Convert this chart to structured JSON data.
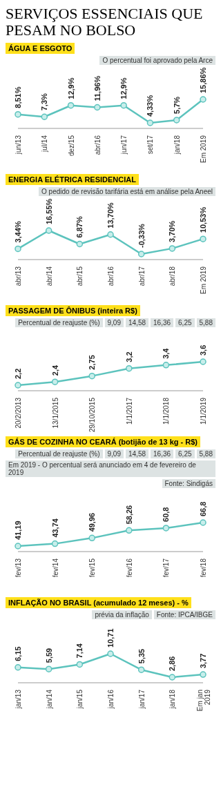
{
  "chart_data": [
    {
      "type": "line",
      "title": "SERVIÇOS ESSENCIAIS QUE PESAM NO BOLSO",
      "subtitle": "ÁGUA E ESGOTO",
      "annotations": [
        "O percentual foi aprovado pela Arce"
      ],
      "categories": [
        "jun/13",
        "jul/14",
        "dez/15",
        "abr/16",
        "jun/17",
        "set/17",
        "jan/18",
        "Em 2019"
      ],
      "values": [
        8.51,
        7.3,
        12.9,
        11.96,
        12.9,
        4.33,
        5.7,
        15.86
      ],
      "value_labels": [
        "8,51%",
        "7,3%",
        "12,9%",
        "11,96%",
        "12,9%",
        "4,33%",
        "5,7%",
        "15,86%"
      ],
      "color": "#5cc3bd",
      "marker": "circle"
    },
    {
      "type": "line",
      "title": "ENERGIA ELÉTRICA RESIDENCIAL",
      "annotations": [
        "O pedido de revisão tarifária está em análise pela Aneel"
      ],
      "categories": [
        "abr/13",
        "abr/14",
        "abr/15",
        "abr/16",
        "abr/17",
        "abr/18",
        "Em 2019"
      ],
      "values": [
        3.44,
        16.55,
        6.87,
        13.7,
        -0.33,
        3.7,
        10.53
      ],
      "value_labels": [
        "3,44%",
        "16,55%",
        "6,87%",
        "13,70%",
        "-0,33%",
        "3,70%",
        "10,53%"
      ],
      "color": "#5cc3bd",
      "marker": "circle"
    },
    {
      "type": "line",
      "title": "PASSAGEM DE ÔNIBUS (inteira R$)",
      "annotations": [
        "Percentual de reajuste (%)",
        "9,09",
        "14,58",
        "16,36",
        "6,25",
        "5,88"
      ],
      "categories": [
        "20/2/2013",
        "13/1/2015",
        "29/10/2015",
        "1/1/2017",
        "1/1/2018",
        "1/1/2019"
      ],
      "values": [
        2.2,
        2.4,
        2.75,
        3.2,
        3.4,
        3.6
      ],
      "value_labels": [
        "2,2",
        "2,4",
        "2,75",
        "3,2",
        "3,4",
        "3,6"
      ],
      "color": "#5cc3bd",
      "marker": "circle"
    },
    {
      "type": "line",
      "title": "GÁS DE COZINHA NO CEARÁ (botijão de 13 kg - R$)",
      "annotations": [
        "Percentual de reajuste (%)",
        "9,09",
        "14,58",
        "16,36",
        "6,25",
        "5,88",
        "Em 2019 - O percentual será anunciado em 4 de fevereiro de 2019",
        "Fonte: Sindigás"
      ],
      "categories": [
        "fev/13",
        "fev/14",
        "fev/15",
        "fev/16",
        "fev/17",
        "fev/18"
      ],
      "values": [
        41.19,
        43.74,
        49.96,
        58.26,
        60.8,
        66.8
      ],
      "value_labels": [
        "41,19",
        "43,74",
        "49,96",
        "58,26",
        "60,8",
        "66,8"
      ],
      "color": "#5cc3bd",
      "marker": "circle"
    },
    {
      "type": "line",
      "title": "INFLAÇÃO NO BRASIL (acumulado 12 meses) - %",
      "annotations": [
        "prévia da inflação",
        "Fonte: IPCA/IBGE"
      ],
      "categories": [
        "jan/13",
        "jan/14",
        "jan/15",
        "jan/16",
        "jan/17",
        "jan/18",
        "Em jan 2019"
      ],
      "values": [
        6.15,
        5.59,
        7.14,
        10.71,
        5.35,
        2.86,
        3.77
      ],
      "value_labels": [
        "6,15",
        "5,59",
        "7,14",
        "10,71",
        "5,35",
        "2,86",
        "3,77"
      ],
      "color": "#5cc3bd",
      "marker": "circle"
    }
  ]
}
